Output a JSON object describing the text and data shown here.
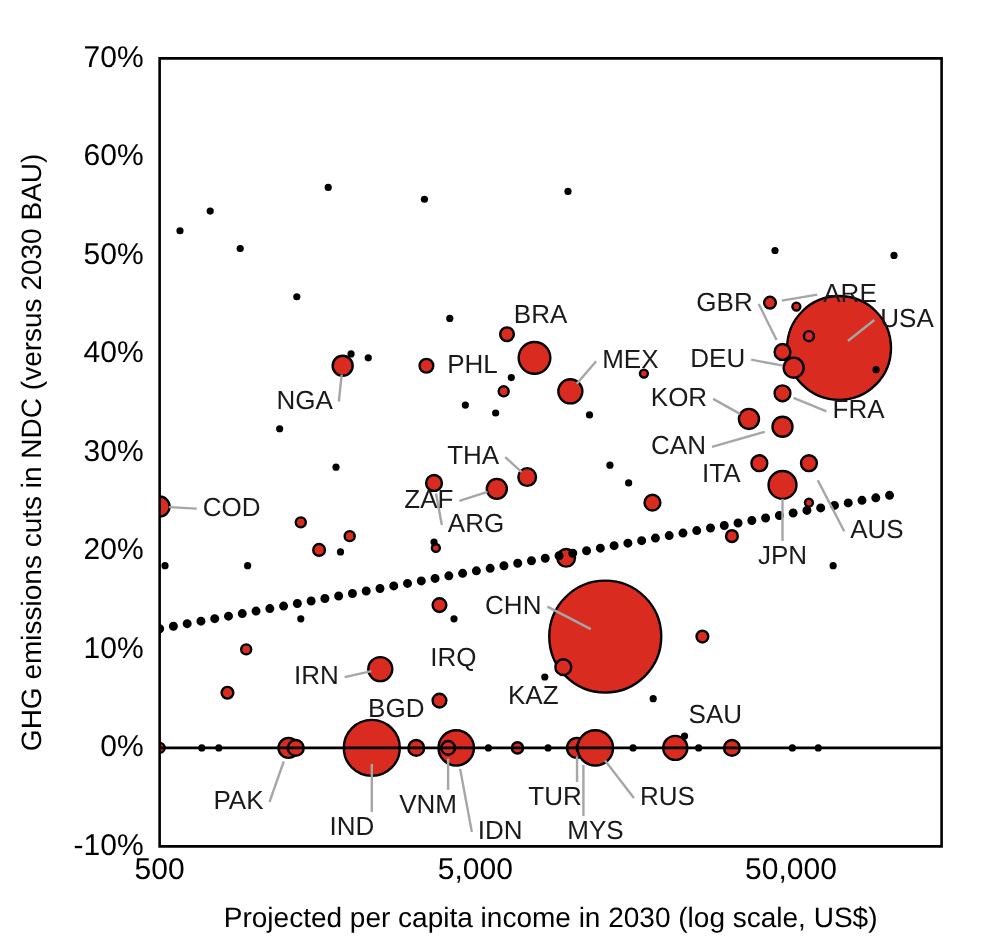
{
  "chart_data": {
    "type": "bubble",
    "xlabel": "Projected per capita income in 2030 (log scale, US$)",
    "ylabel": "GHG emissions cuts in NDC (versus 2030 BAU)",
    "log": "x",
    "grid": false,
    "legend": false,
    "xlim": [
      500,
      150000
    ],
    "xticks": [
      500,
      {
        "value": 5000,
        "label": "5,000"
      },
      {
        "value": 50000,
        "label": "50,000"
      }
    ],
    "ylim": [
      -10,
      70
    ],
    "yticks": [
      {
        "value": -10,
        "label": "-10%"
      },
      {
        "value": 0,
        "label": "0%"
      },
      {
        "value": 10,
        "label": "10%"
      },
      {
        "value": 20,
        "label": "20%"
      },
      {
        "value": 30,
        "label": "30%"
      },
      {
        "value": 40,
        "label": "40%"
      },
      {
        "value": 50,
        "label": "50%"
      },
      {
        "value": 60,
        "label": "60%"
      },
      {
        "value": 70,
        "label": "70%"
      }
    ],
    "ref_lines": [
      {
        "axis": "y",
        "value": 0,
        "color": "#000000"
      }
    ],
    "series": [
      {
        "color": "#d92b20",
        "x": [
          71000,
          12900,
          2350,
          7700,
          10000,
          47000,
          51000,
          42900,
          52000,
          57000,
          47000,
          36800,
          47000,
          39700,
          57000,
          47000,
          57000,
          1900,
          3500,
          500,
          7300,
          5850,
          3700,
          6300,
          6150,
          17100,
          18200,
          9700,
          32500,
          26200,
          3750,
          1400,
          1600,
          2000,
          940,
          820,
          500,
          2500,
          3850,
          9500,
          3850,
          1280,
          1350,
          3250,
          4350,
          10500,
          11000,
          12000,
          21500,
          32500,
          6800,
          4100
        ],
        "values": [
          40.6,
          11.3,
          0,
          39.6,
          36.2,
          40.2,
          38.6,
          45.2,
          44.8,
          41.8,
          36,
          33.4,
          32.6,
          28.9,
          28.9,
          26.7,
          24.9,
          38.8,
          38.8,
          24.5,
          27.5,
          26.3,
          26.9,
          42,
          36.2,
          38,
          24.9,
          19.3,
          21.5,
          11.3,
          20.3,
          22.9,
          20.1,
          21.5,
          10,
          5.6,
          0,
          8,
          4.8,
          8.2,
          14.5,
          0,
          0,
          0,
          0,
          0,
          0,
          0,
          0,
          0,
          0,
          0
        ],
        "sizes": [
          0.86,
          1,
          0.25,
          0.08,
          0.046,
          0.02,
          0.032,
          0.011,
          0.005,
          0.008,
          0.02,
          0.032,
          0.032,
          0.02,
          0.02,
          0.062,
          0.005,
          0.032,
          0.015,
          0.032,
          0.025,
          0.032,
          0.02,
          0.015,
          0.008,
          0.005,
          0.02,
          0.025,
          0.011,
          0.011,
          0.005,
          0.008,
          0.011,
          0.008,
          0.008,
          0.011,
          0.008,
          0.046,
          0.015,
          0.02,
          0.015,
          0.032,
          0.02,
          0.02,
          0.1,
          0.032,
          0.015,
          0.1,
          0.046,
          0.02,
          0.01,
          0.015
        ]
      },
      {
        "type": "scatter",
        "color": "#000000",
        "marker": "circle",
        "x": [
          723,
          900,
          580,
          1710,
          3450,
          1360,
          4150,
          2290,
          2020,
          1200,
          1810,
          4650,
          6500,
          5800,
          9830,
          44500,
          106000,
          11500,
          520,
          950,
          1870,
          3700,
          4280,
          1400,
          13350,
          15300,
          68000,
          8300,
          18300,
          23000,
          50500,
          93000,
          770,
          680,
          5500,
          15800,
          25500,
          61000,
          8500
        ],
        "values": [
          54.5,
          50.7,
          52.5,
          56.9,
          55.7,
          45.8,
          43.6,
          39.6,
          40,
          32.4,
          28.5,
          34.8,
          37.6,
          34,
          56.5,
          50.5,
          50,
          33.8,
          18.5,
          18.5,
          19.9,
          20.9,
          13.1,
          13.1,
          28.7,
          26.9,
          18.5,
          7.2,
          5,
          1.2,
          0,
          38.4,
          0,
          0,
          0,
          0,
          0,
          0,
          0
        ]
      },
      {
        "type": "line",
        "color": "#000000",
        "line_style": "dotted",
        "marker": "none",
        "x": [
          500,
          105000
        ],
        "values": [
          12.1,
          25.7
        ]
      }
    ],
    "annotations": [
      {
        "text": "USA",
        "x": 71000,
        "y": 40.6
      },
      {
        "text": "ARE",
        "x": 42900,
        "y": 45.2
      },
      {
        "text": "GBR",
        "x": 47000,
        "y": 40.2
      },
      {
        "text": "DEU",
        "x": 51000,
        "y": 38.6
      },
      {
        "text": "MEX",
        "x": 10000,
        "y": 36.2
      },
      {
        "text": "BRA",
        "x": 7700,
        "y": 39.6
      },
      {
        "text": "FRA",
        "x": 47000,
        "y": 36
      },
      {
        "text": "KOR",
        "x": 36800,
        "y": 33.4
      },
      {
        "text": "CAN",
        "x": 47000,
        "y": 32.6
      },
      {
        "text": "ITA",
        "x": 39700,
        "y": 28.9
      },
      {
        "text": "AUS",
        "x": 57000,
        "y": 28.9
      },
      {
        "text": "JPN",
        "x": 47000,
        "y": 26.7
      },
      {
        "text": "SAU",
        "x": 21500,
        "y": 0
      },
      {
        "text": "RUS",
        "x": 12000,
        "y": 0
      },
      {
        "text": "MYS",
        "x": 11000,
        "y": 0
      },
      {
        "text": "TUR",
        "x": 10500,
        "y": 0
      },
      {
        "text": "IDN",
        "x": 4350,
        "y": 0
      },
      {
        "text": "VNM",
        "x": 4100,
        "y": 0
      },
      {
        "text": "IND",
        "x": 2350,
        "y": 0
      },
      {
        "text": "PAK",
        "x": 1280,
        "y": 0
      },
      {
        "text": "BGD",
        "x": 3250,
        "y": 0
      },
      {
        "text": "IRN",
        "x": 2500,
        "y": 8
      },
      {
        "text": "IRQ",
        "x": 3850,
        "y": 4.8
      },
      {
        "text": "KAZ",
        "x": 9500,
        "y": 8.2
      },
      {
        "text": "CHN",
        "x": 12900,
        "y": 11.3
      },
      {
        "text": "ARG",
        "x": 3700,
        "y": 26.9
      },
      {
        "text": "ZAF",
        "x": 5850,
        "y": 26.3
      },
      {
        "text": "THA",
        "x": 7300,
        "y": 27.5
      },
      {
        "text": "COD",
        "x": 500,
        "y": 24.5
      },
      {
        "text": "NGA",
        "x": 1900,
        "y": 38.8
      },
      {
        "text": "PHL",
        "x": 3500,
        "y": 38.8
      }
    ]
  }
}
